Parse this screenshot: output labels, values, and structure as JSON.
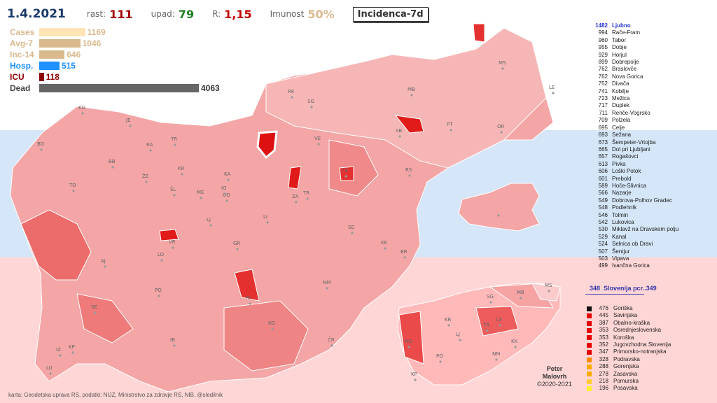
{
  "header": {
    "date": "1.4.2021",
    "rast_label": "rast:",
    "rast_value": "111",
    "upad_label": "upad:",
    "upad_value": "79",
    "r_label": "R:",
    "r_value": "1,15",
    "imunost_label": "Imunost",
    "imunost_value": "50%",
    "view_button": "Incidenca-7d"
  },
  "bars": [
    {
      "label": "Cases",
      "value": "1169",
      "color": "#ffe4b5",
      "ratio": 0.288
    },
    {
      "label": "Avg-7",
      "value": "1046",
      "color": "#d9b98d",
      "ratio": 0.257
    },
    {
      "label": "Inc-14",
      "value": "646",
      "color": "#d9b98d",
      "ratio": 0.159
    },
    {
      "label": "Hosp.",
      "value": "515",
      "color": "#1e90ff",
      "ratio": 0.127
    },
    {
      "label": "ICU",
      "value": "118",
      "color": "#8b0000",
      "ratio": 0.029
    },
    {
      "label": "Dead",
      "value": "4063",
      "color": "#666666",
      "ratio": 1.0
    }
  ],
  "bar_label_colors": [
    "#d9b98d",
    "#d9b98d",
    "#d9b98d",
    "#1e90ff",
    "#8b0000",
    "#444444"
  ],
  "top_list": [
    {
      "v": "1482",
      "n": "Ljubno"
    },
    {
      "v": "994",
      "n": "Rače-Fram"
    },
    {
      "v": "960",
      "n": "Tabor"
    },
    {
      "v": "955",
      "n": "Dobje"
    },
    {
      "v": "929",
      "n": "Horjul"
    },
    {
      "v": "899",
      "n": "Dobrepolje"
    },
    {
      "v": "762",
      "n": "Braslovče"
    },
    {
      "v": "762",
      "n": "Nova Gorica"
    },
    {
      "v": "752",
      "n": "Divača"
    },
    {
      "v": "741",
      "n": "Kobilje"
    },
    {
      "v": "723",
      "n": "Mežica"
    },
    {
      "v": "717",
      "n": "Duplek"
    },
    {
      "v": "711",
      "n": "Renče-Vogrsko"
    },
    {
      "v": "709",
      "n": "Polzela"
    },
    {
      "v": "695",
      "n": "Celje"
    },
    {
      "v": "693",
      "n": "Sežana"
    },
    {
      "v": "673",
      "n": "Šempeter-Vrtojba"
    },
    {
      "v": "665",
      "n": "Dol pri Ljubljani"
    },
    {
      "v": "657",
      "n": "Rogašovci"
    },
    {
      "v": "613",
      "n": "Pivka"
    },
    {
      "v": "606",
      "n": "Loški Potok"
    },
    {
      "v": "601",
      "n": "Prebold"
    },
    {
      "v": "589",
      "n": "Hoče-Slivnica"
    },
    {
      "v": "566",
      "n": "Nazarje"
    },
    {
      "v": "549",
      "n": "Dobrova-Polhov Gradec"
    },
    {
      "v": "548",
      "n": "Podlehnik"
    },
    {
      "v": "546",
      "n": "Tolmin"
    },
    {
      "v": "542",
      "n": "Lukovica"
    },
    {
      "v": "530",
      "n": "Miklavž na Dravskem polju"
    },
    {
      "v": "529",
      "n": "Kanal"
    },
    {
      "v": "524",
      "n": "Selnica ob Dravi"
    },
    {
      "v": "507",
      "n": "Šentjur"
    },
    {
      "v": "503",
      "n": "Vipava"
    },
    {
      "v": "499",
      "n": "Ivančna Gorica"
    }
  ],
  "slovenia": {
    "value": "348",
    "label": "Slovenija  pcr..349"
  },
  "regions": [
    {
      "v": "476",
      "n": "Goriška",
      "c": "#111111"
    },
    {
      "v": "445",
      "n": "Savinjska",
      "c": "#e60000"
    },
    {
      "v": "387",
      "n": "Obalno-kraška",
      "c": "#e60000"
    },
    {
      "v": "353",
      "n": "Osrednjeslovenska",
      "c": "#e60000"
    },
    {
      "v": "353",
      "n": "Koroška",
      "c": "#e60000"
    },
    {
      "v": "352",
      "n": "Jugovzhodna Slovenija",
      "c": "#e60000"
    },
    {
      "v": "347",
      "n": "Primorsko-notranjska",
      "c": "#e60000"
    },
    {
      "v": "328",
      "n": "Podravska",
      "c": "#ff8800"
    },
    {
      "v": "288",
      "n": "Gorenjska",
      "c": "#ffaa00"
    },
    {
      "v": "278",
      "n": "Zasavska",
      "c": "#ffaa00"
    },
    {
      "v": "218",
      "n": "Pomurska",
      "c": "#ffcc33"
    },
    {
      "v": "196",
      "n": "Posavska",
      "c": "#ffee33"
    }
  ],
  "map_labels": [
    "KG",
    "JE",
    "BO",
    "RA",
    "BB",
    "TR",
    "KR",
    "ŽE",
    "ŠL",
    "ME",
    "TO",
    "KA",
    "GO",
    "IG",
    "AJ",
    "VR",
    "LJ",
    "LO",
    "GR",
    "PO",
    "SE",
    "RI",
    "BR",
    "KK",
    "NM",
    "KO",
    "ČR",
    "IB",
    "IZ",
    "KP",
    "LU",
    "VE",
    "CE",
    "ZA",
    "TR",
    "LI",
    "SE",
    "RK",
    "SG",
    "MB",
    "SB",
    "RS",
    "PT",
    "OR",
    "MS",
    "LE"
  ],
  "region_map_labels": [
    "MS",
    "SG",
    "MB",
    "KR",
    "TR",
    "CE",
    "LJ",
    "KK",
    "NG",
    "PO",
    "NM",
    "KP"
  ],
  "credit": {
    "line1": "Peter",
    "line2": "Malovrh",
    "line3": "©2020-2021"
  },
  "source": "karta: Geodetska uprava RS,  podatki: NIJZ, Ministrstvo za zdravje RS, NIB, @sledilnik"
}
